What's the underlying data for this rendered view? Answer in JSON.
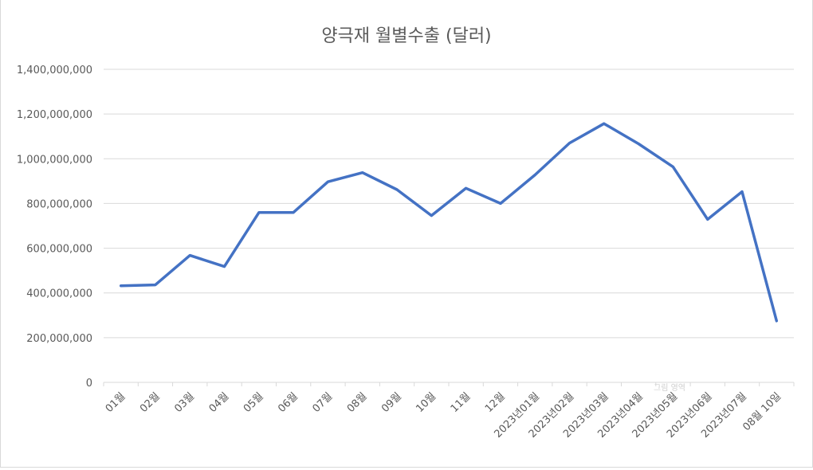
{
  "chart_data": {
    "type": "line",
    "title": "양극재 월별수출 (달러)",
    "xlabel": "",
    "ylabel": "",
    "ylim": [
      0,
      1400000000
    ],
    "yticks": [
      0,
      200000000,
      400000000,
      600000000,
      800000000,
      1000000000,
      1200000000,
      1400000000
    ],
    "ytick_labels": [
      "0",
      "200,000,000",
      "400,000,000",
      "600,000,000",
      "800,000,000",
      "1,000,000,000",
      "1,200,000,000",
      "1,400,000,000"
    ],
    "categories": [
      "01월",
      "02월",
      "03월",
      "04월",
      "05월",
      "06월",
      "07월",
      "08월",
      "09월",
      "10월",
      "11월",
      "12월",
      "2023년01월",
      "2023년02월",
      "2023년03월",
      "2023년04월",
      "2023년05월",
      "2023년06월",
      "2023년07월",
      "08월 10일"
    ],
    "series": [
      {
        "values": [
          432000000,
          436000000,
          568000000,
          518000000,
          760000000,
          760000000,
          897000000,
          938000000,
          862000000,
          746000000,
          868000000,
          800000000,
          928000000,
          1070000000,
          1157000000,
          1067000000,
          964000000,
          729000000,
          853000000,
          275000000
        ]
      }
    ],
    "grid": true,
    "legend": "none"
  },
  "overlay": {
    "faint_label": "그림 영역"
  },
  "colors": {
    "series": "#4472c4",
    "grid": "#d9d9d9",
    "text": "#595959"
  }
}
